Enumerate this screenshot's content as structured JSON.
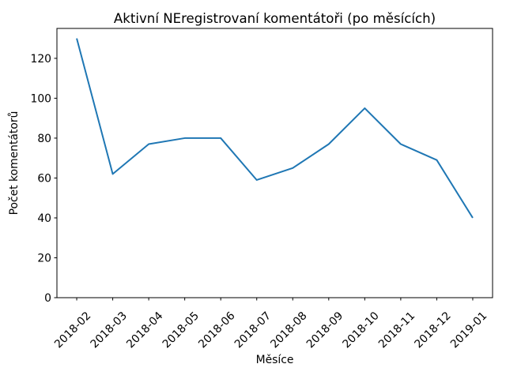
{
  "chart_data": {
    "type": "line",
    "title": "Aktivní NEregistrovaní komentátoři (po měsících)",
    "xlabel": "Měsíce",
    "ylabel": "Počet komentátorů",
    "categories": [
      "2018-02",
      "2018-03",
      "2018-04",
      "2018-05",
      "2018-06",
      "2018-07",
      "2018-08",
      "2018-09",
      "2018-10",
      "2018-11",
      "2018-12",
      "2019-01"
    ],
    "values": [
      130,
      62,
      77,
      80,
      80,
      59,
      65,
      77,
      95,
      77,
      69,
      40
    ],
    "yticks": [
      0,
      20,
      40,
      60,
      80,
      100,
      120
    ],
    "ylim": [
      0,
      135
    ],
    "x_margin": 0.55,
    "xtick_rotation": 45,
    "grid": false,
    "legend_position": "none",
    "line_color": "#1f77b4",
    "axis_color": "#000000",
    "background_color": "#ffffff"
  }
}
